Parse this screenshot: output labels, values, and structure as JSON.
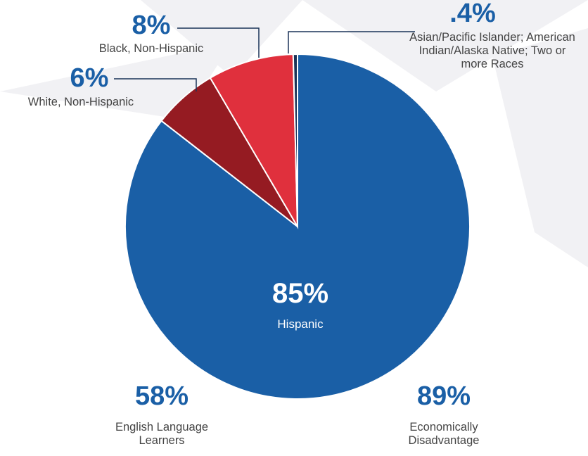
{
  "chart_data": {
    "type": "pie",
    "categories": [
      "Hispanic",
      "White, Non-Hispanic",
      "Black, Non-Hispanic",
      "Asian/Pacific Islander; American Indian/Alaska Native; Two or more Races"
    ],
    "values": [
      85,
      6,
      8,
      0.4
    ],
    "value_labels": [
      "85%",
      "6%",
      "8%",
      ".4%"
    ],
    "colors": [
      "#1a5fa6",
      "#951b22",
      "#e0303d",
      "#1b3458"
    ],
    "stats": [
      {
        "value": "58%",
        "label": "English Language Learners"
      },
      {
        "value": "89%",
        "label": "Economically Disadvantage"
      }
    ]
  }
}
